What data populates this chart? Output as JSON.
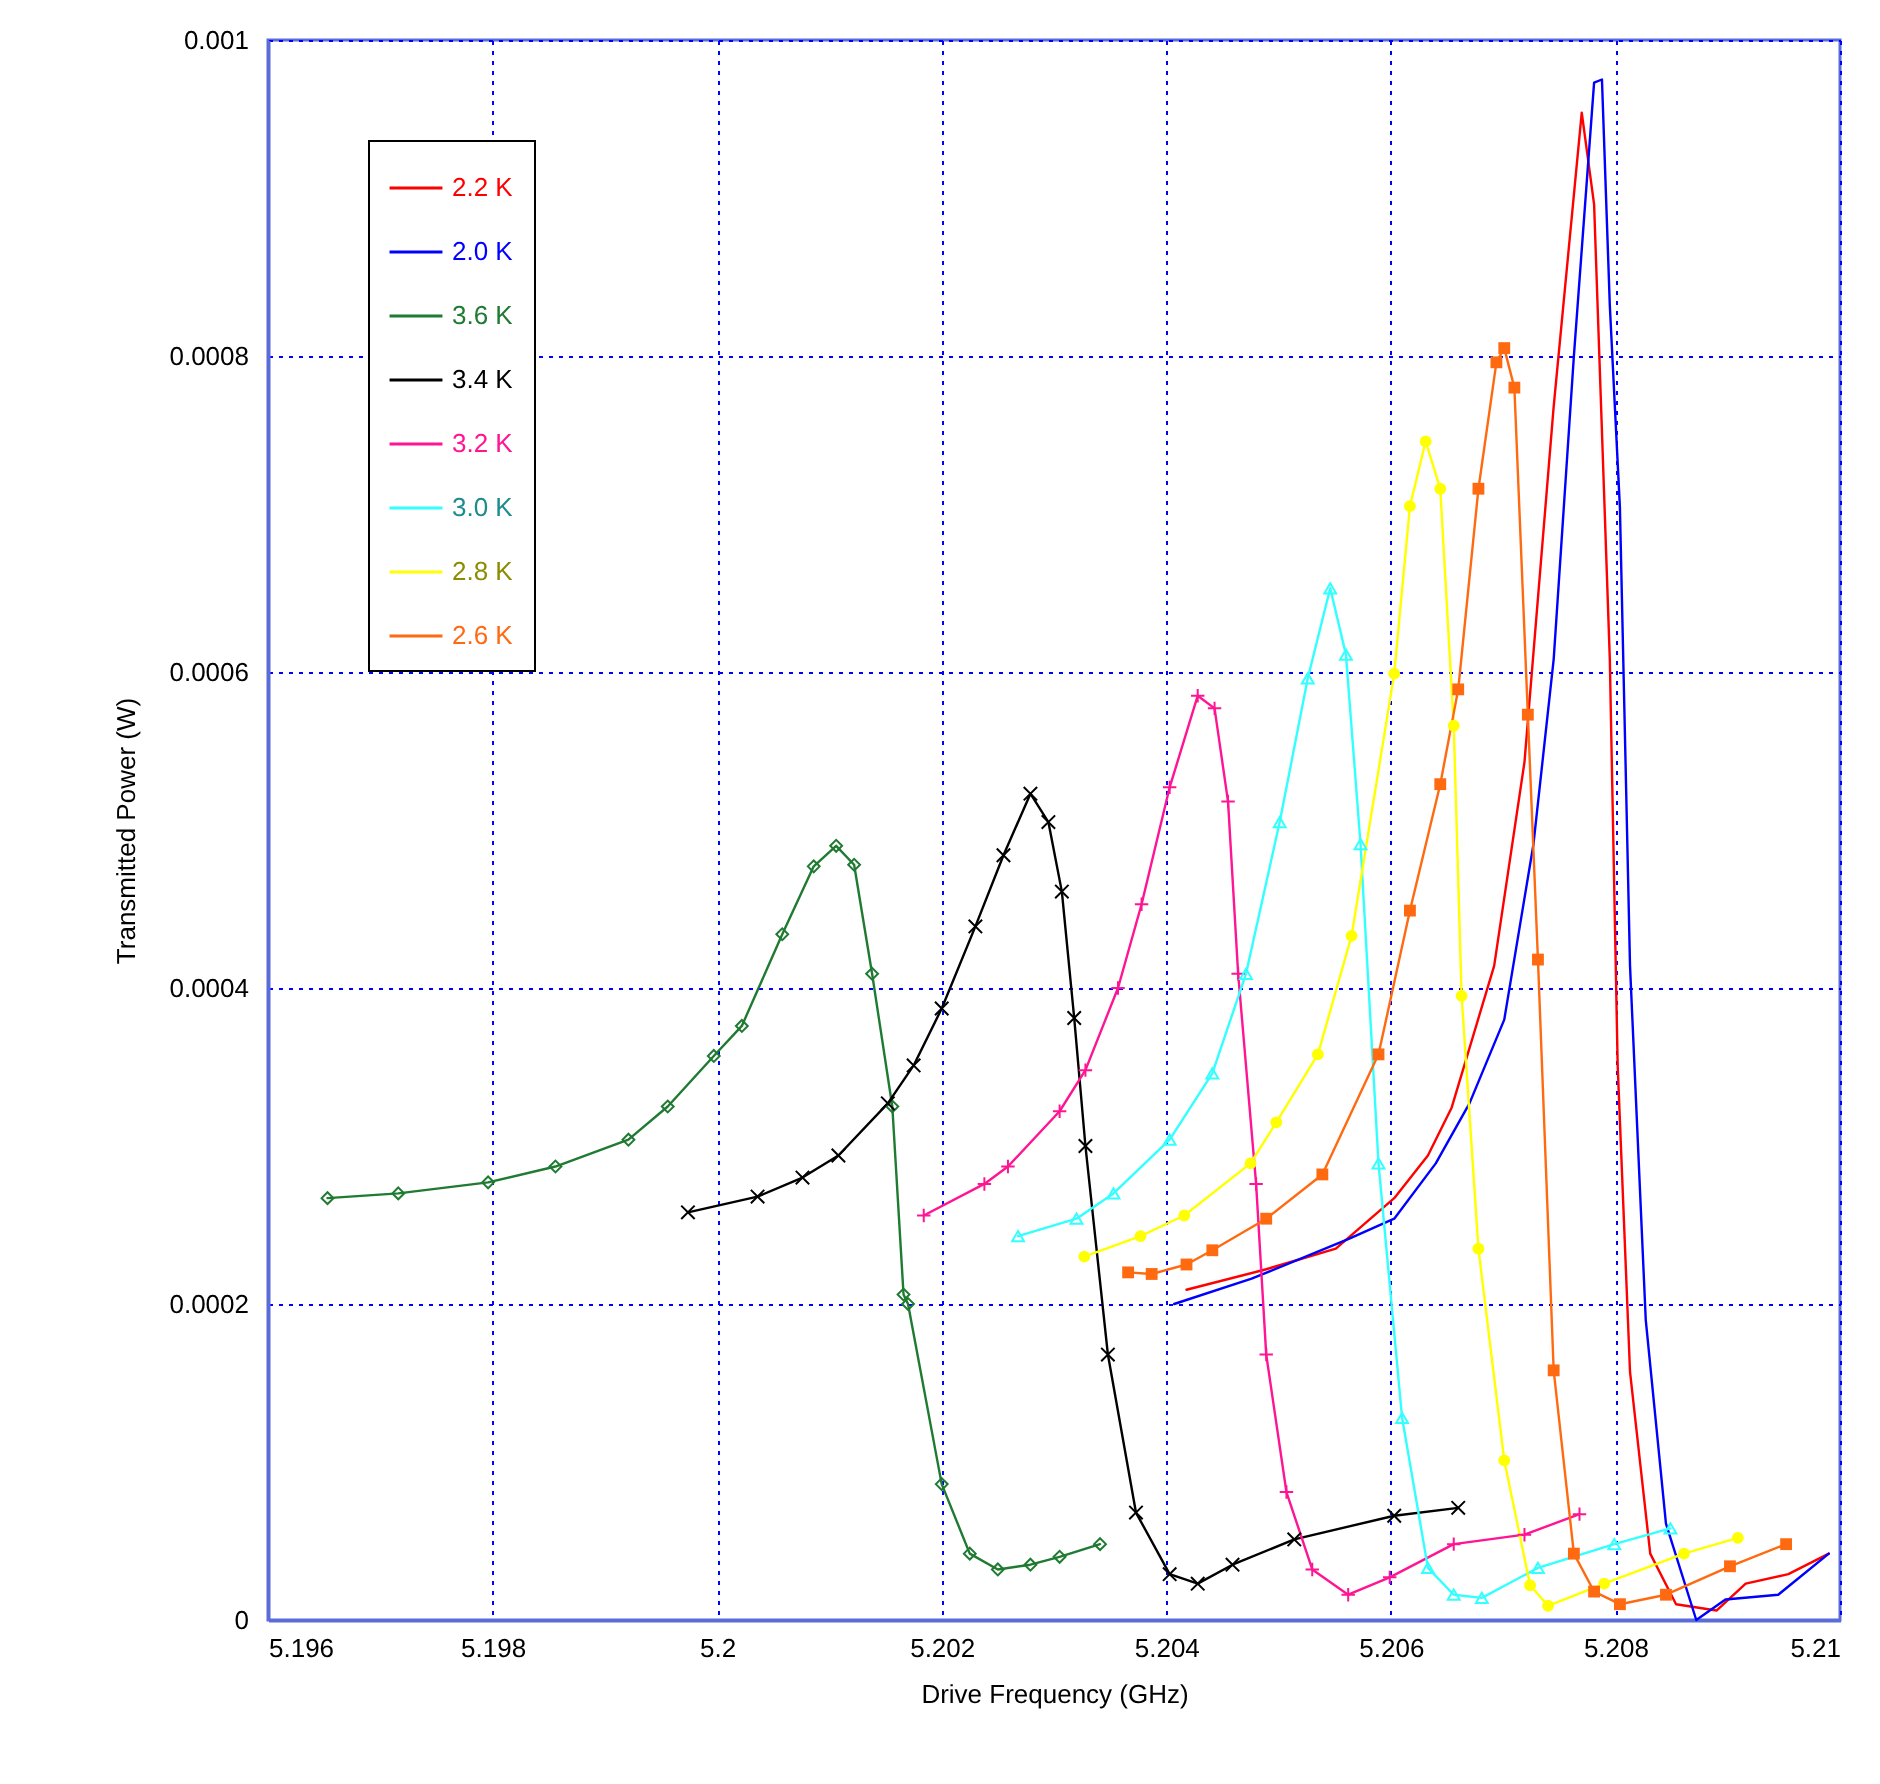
{
  "chart_data": {
    "type": "line",
    "xlabel": "Drive Frequency (GHz)",
    "ylabel": "Transmitted Power (W)",
    "xlim": [
      5.196,
      5.21
    ],
    "xticks": [
      5.196,
      5.198,
      5.2,
      5.202,
      5.204,
      5.206,
      5.208,
      5.21
    ],
    "ylim": [
      0,
      0.001
    ],
    "yticks": [
      0,
      0.0002,
      0.0004,
      0.0006,
      0.0008,
      0.001
    ],
    "grid": true,
    "legend": "top left",
    "line_style": "solid",
    "series": [
      {
        "name": "2.2 K",
        "color": "#ff0000",
        "marker": "none",
        "x": [
          5.20418,
          5.20489,
          5.20551,
          5.20603,
          5.20633,
          5.20654,
          5.20692,
          5.20719,
          5.20745,
          5.2077,
          5.20781,
          5.20795,
          5.20802,
          5.20813,
          5.20831,
          5.20854,
          5.2089,
          5.20916,
          5.20954,
          5.2099
        ],
        "values": [
          0.000209,
          0.000222,
          0.000235,
          0.000267,
          0.000294,
          0.000324,
          0.000414,
          0.000543,
          0.000768,
          0.000954,
          0.000896,
          0.000608,
          0.000351,
          0.000157,
          4.2e-05,
          1e-05,
          6e-06,
          2.3e-05,
          2.9e-05,
          4.2e-05
        ]
      },
      {
        "name": "2.0 K",
        "color": "#0000ff",
        "marker": "none",
        "x": [
          5.20407,
          5.20476,
          5.20562,
          5.20603,
          5.2064,
          5.2067,
          5.20701,
          5.20727,
          5.20745,
          5.20763,
          5.20781,
          5.20788,
          5.20795,
          5.20804,
          5.20813,
          5.20827,
          5.20845,
          5.20872,
          5.20898,
          5.20945,
          5.2099
        ],
        "values": [
          0.0002,
          0.000216,
          0.000241,
          0.000254,
          0.000289,
          0.000327,
          0.00038,
          0.000491,
          0.000608,
          0.0008,
          0.000973,
          0.000975,
          0.000832,
          0.000704,
          0.000414,
          0.00019,
          6.1e-05,
          0,
          1.3e-05,
          1.6e-05,
          4.2e-05
        ]
      },
      {
        "name": "3.6 K",
        "color": "#1f7a32",
        "marker": "diamond",
        "x": [
          5.19653,
          5.19716,
          5.19796,
          5.19856,
          5.19921,
          5.19956,
          5.19997,
          5.20022,
          5.20058,
          5.20086,
          5.20106,
          5.20122,
          5.20138,
          5.20156,
          5.20166,
          5.2017,
          5.202,
          5.20225,
          5.2025,
          5.20279,
          5.20305,
          5.20341
        ],
        "values": [
          0.000267,
          0.00027,
          0.000277,
          0.000287,
          0.000304,
          0.000325,
          0.000357,
          0.000376,
          0.000434,
          0.000477,
          0.00049,
          0.000478,
          0.000409,
          0.000325,
          0.000206,
          0.0002,
          8.6e-05,
          4.2e-05,
          3.2e-05,
          3.5e-05,
          4e-05,
          4.8e-05
        ]
      },
      {
        "name": "3.4 K",
        "color": "#000000",
        "marker": "cross",
        "x": [
          5.19974,
          5.20036,
          5.20076,
          5.20108,
          5.20152,
          5.20175,
          5.202,
          5.2023,
          5.20255,
          5.20279,
          5.20295,
          5.20307,
          5.20318,
          5.20328,
          5.20348,
          5.20373,
          5.20403,
          5.20428,
          5.20459,
          5.20514,
          5.20603,
          5.2066
        ],
        "values": [
          0.000258,
          0.000268,
          0.00028,
          0.000294,
          0.000327,
          0.000351,
          0.000387,
          0.000439,
          0.000484,
          0.000523,
          0.000505,
          0.000461,
          0.000381,
          0.0003,
          0.000168,
          6.8e-05,
          2.9e-05,
          2.3e-05,
          3.5e-05,
          5.1e-05,
          6.6e-05,
          7.1e-05
        ]
      },
      {
        "name": "3.2 K",
        "color": "#ff1493",
        "marker": "plus",
        "x": [
          5.20184,
          5.20238,
          5.20259,
          5.20305,
          5.20328,
          5.20357,
          5.20378,
          5.20403,
          5.20428,
          5.20443,
          5.20455,
          5.20464,
          5.2048,
          5.20489,
          5.20507,
          5.2053,
          5.20562,
          5.20599,
          5.20656,
          5.20719,
          5.20768
        ],
        "values": [
          0.000256,
          0.000276,
          0.000287,
          0.000322,
          0.000348,
          0.0004,
          0.000453,
          0.000527,
          0.000585,
          0.000577,
          0.000518,
          0.000409,
          0.000276,
          0.000168,
          8.1e-05,
          3.2e-05,
          1.6e-05,
          2.7e-05,
          4.8e-05,
          5.4e-05,
          6.7e-05
        ]
      },
      {
        "name": "3.0 K",
        "color": "#33ffff",
        "marker": "triangle",
        "x": [
          5.20268,
          5.2032,
          5.20353,
          5.20403,
          5.20441,
          5.20471,
          5.20501,
          5.20526,
          5.20546,
          5.2056,
          5.20573,
          5.20589,
          5.2061,
          5.20633,
          5.20656,
          5.20681,
          5.20731,
          5.20799,
          5.20849
        ],
        "values": [
          0.000243,
          0.000254,
          0.00027,
          0.000304,
          0.000346,
          0.000409,
          0.000505,
          0.000596,
          0.000653,
          0.000611,
          0.000491,
          0.000289,
          0.000128,
          3.3e-05,
          1.6e-05,
          1.4e-05,
          3.3e-05,
          4.8e-05,
          5.8e-05
        ]
      },
      {
        "name": "2.8 K",
        "color": "#ffff00",
        "marker": "circle",
        "x": [
          5.20327,
          5.20377,
          5.20416,
          5.20475,
          5.20498,
          5.20535,
          5.20565,
          5.20603,
          5.20617,
          5.20631,
          5.20644,
          5.20656,
          5.20663,
          5.20678,
          5.20701,
          5.20724,
          5.2074,
          5.2079,
          5.20861,
          5.20909
        ],
        "values": [
          0.00023,
          0.000243,
          0.000256,
          0.000289,
          0.000315,
          0.000358,
          0.000433,
          0.000599,
          0.000705,
          0.000746,
          0.000716,
          0.000566,
          0.000395,
          0.000235,
          0.000101,
          2.2e-05,
          9e-06,
          2.3e-05,
          4.2e-05,
          5.2e-05
        ]
      },
      {
        "name": "2.6 K",
        "color": "#ff6a10",
        "marker": "square",
        "x": [
          5.20366,
          5.20387,
          5.20418,
          5.20441,
          5.20489,
          5.20539,
          5.20589,
          5.20617,
          5.20644,
          5.2066,
          5.20678,
          5.20694,
          5.20701,
          5.2071,
          5.20722,
          5.20731,
          5.20745,
          5.20763,
          5.20781,
          5.20804,
          5.20845,
          5.20902,
          5.20952
        ],
        "values": [
          0.00022,
          0.000219,
          0.000225,
          0.000234,
          0.000254,
          0.000282,
          0.000358,
          0.000449,
          0.000529,
          0.000589,
          0.000716,
          0.000796,
          0.000805,
          0.00078,
          0.000573,
          0.000418,
          0.000158,
          4.2e-05,
          1.8e-05,
          1e-05,
          1.6e-05,
          3.4e-05,
          4.8e-05
        ]
      }
    ]
  }
}
